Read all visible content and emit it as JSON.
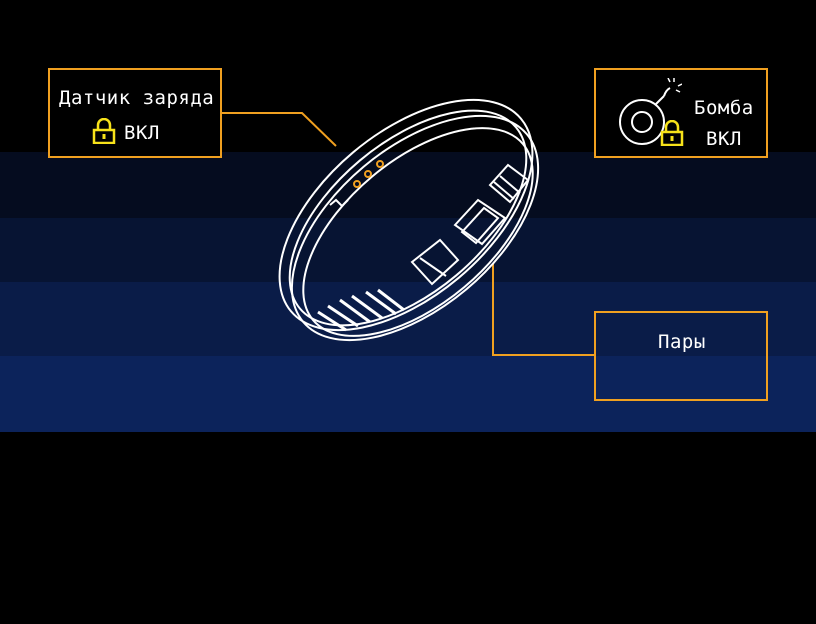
{
  "charge_sensor": {
    "title": "Датчик заряда",
    "status": "ВКЛ",
    "icon": "lock-icon"
  },
  "bomb": {
    "title": "Бомба",
    "status": "ВКЛ",
    "icons": [
      "bomb-icon",
      "lock-icon"
    ]
  },
  "vapors": {
    "title": "Пары"
  },
  "colors": {
    "panel_border": "#f0a020",
    "lock": "#f7e21a",
    "wireframe": "#ffffff",
    "sensor_dots": "#f0a020"
  }
}
